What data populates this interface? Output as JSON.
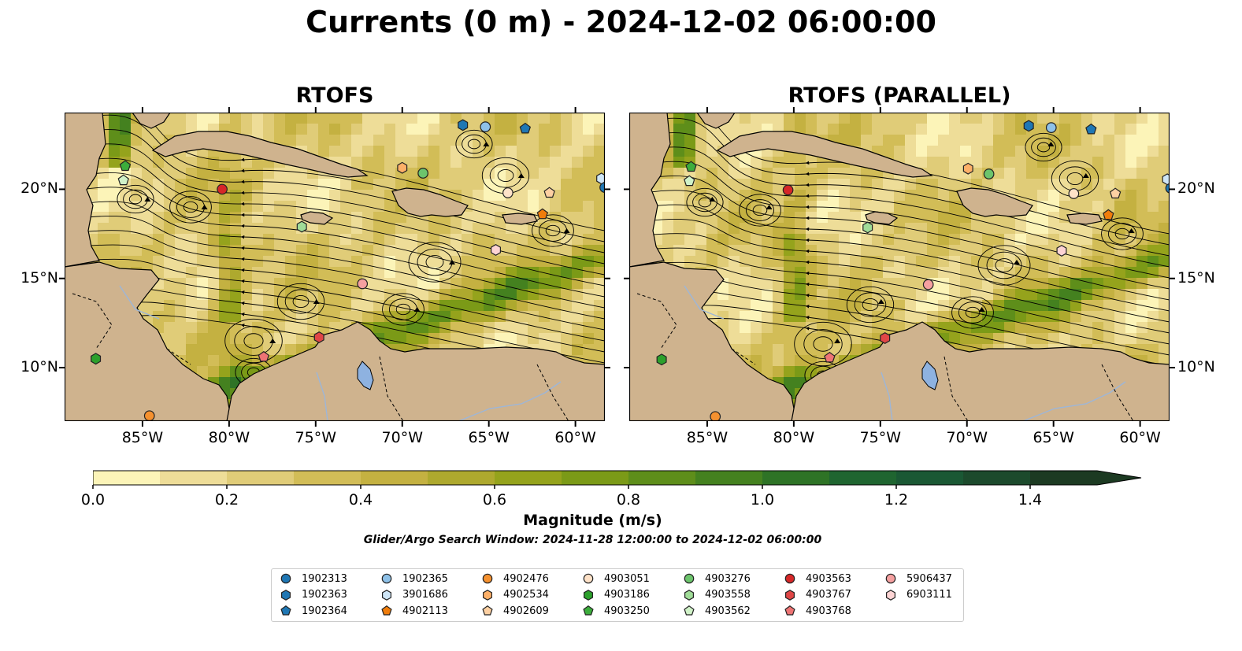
{
  "suptitle": "Currents (0 m) - 2024-12-02 06:00:00",
  "panels": [
    {
      "title": "RTOFS"
    },
    {
      "title": "RTOFS (PARALLEL)"
    }
  ],
  "axes": {
    "lon_labels": [
      "85°W",
      "80°W",
      "75°W",
      "70°W",
      "65°W",
      "60°W"
    ],
    "lon_values": [
      -85,
      -80,
      -75,
      -70,
      -65,
      -60
    ],
    "lat_labels": [
      "20°N",
      "15°N",
      "10°N"
    ],
    "lat_values": [
      20,
      15,
      10
    ],
    "extent": {
      "lon_min": -89.5,
      "lon_max": -58.3,
      "lat_min": 7.0,
      "lat_max": 24.3
    }
  },
  "colorbar": {
    "label": "Magnitude (m/s)",
    "ticks": [
      "0.0",
      "0.2",
      "0.4",
      "0.6",
      "0.8",
      "1.0",
      "1.2",
      "1.4"
    ],
    "tick_values": [
      0.0,
      0.2,
      0.4,
      0.6,
      0.8,
      1.0,
      1.2,
      1.4
    ],
    "min": 0.0,
    "max": 1.5,
    "extend": "max",
    "colors": [
      "#fcf4b8",
      "#eedd98",
      "#e0cc78",
      "#d2bd57",
      "#c4b141",
      "#aea92e",
      "#95a31c",
      "#7b9a17",
      "#5e8e1a",
      "#44811f",
      "#2e7326",
      "#1f6530",
      "#1a5834",
      "#1c4a2c",
      "#1c3a22"
    ]
  },
  "caption": "Glider/Argo Search Window: 2024-11-28 12:00:00 to 2024-12-02 06:00:00",
  "land_color": "#cfb38e",
  "lake_color": "#8eb2e0",
  "platforms": [
    {
      "id": "1902313",
      "marker": "circle",
      "color": "#1f77b4"
    },
    {
      "id": "1902363",
      "marker": "hexagon",
      "color": "#1f77b4"
    },
    {
      "id": "1902364",
      "marker": "pentagon",
      "color": "#1f77b4"
    },
    {
      "id": "1902365",
      "marker": "circle",
      "color": "#8ec1e8"
    },
    {
      "id": "3901686",
      "marker": "hexagon",
      "color": "#cfe6f7"
    },
    {
      "id": "4902113",
      "marker": "pentagon",
      "color": "#f07d0c"
    },
    {
      "id": "4902476",
      "marker": "circle",
      "color": "#f5912f"
    },
    {
      "id": "4902534",
      "marker": "hexagon",
      "color": "#fdb068"
    },
    {
      "id": "4902609",
      "marker": "pentagon",
      "color": "#fdd0a2"
    },
    {
      "id": "4903051",
      "marker": "circle",
      "color": "#fee2c8"
    },
    {
      "id": "4903186",
      "marker": "hexagon",
      "color": "#2ca02c"
    },
    {
      "id": "4903250",
      "marker": "pentagon",
      "color": "#3cad3c"
    },
    {
      "id": "4903276",
      "marker": "circle",
      "color": "#6cc46c"
    },
    {
      "id": "4903558",
      "marker": "hexagon",
      "color": "#a0dc98"
    },
    {
      "id": "4903562",
      "marker": "pentagon",
      "color": "#d0f2c8"
    },
    {
      "id": "4903563",
      "marker": "circle",
      "color": "#d62728"
    },
    {
      "id": "4903767",
      "marker": "hexagon",
      "color": "#e04646"
    },
    {
      "id": "4903768",
      "marker": "pentagon",
      "color": "#ee7474"
    },
    {
      "id": "5906437",
      "marker": "circle",
      "color": "#f5a0a0"
    },
    {
      "id": "6903111",
      "marker": "hexagon",
      "color": "#fdd4d4"
    }
  ],
  "observations": [
    {
      "id": "1902313",
      "lon": -58.3,
      "lat": 20.1
    },
    {
      "id": "1902363",
      "lon": -66.5,
      "lat": 23.6
    },
    {
      "id": "1902364",
      "lon": -62.9,
      "lat": 23.4
    },
    {
      "id": "1902365",
      "lon": -65.2,
      "lat": 23.5
    },
    {
      "id": "3901686",
      "lon": -58.5,
      "lat": 20.6
    },
    {
      "id": "4902113",
      "lon": -61.9,
      "lat": 18.6
    },
    {
      "id": "4902476",
      "lon": -84.6,
      "lat": 7.3
    },
    {
      "id": "4902534",
      "lon": -70.0,
      "lat": 21.2
    },
    {
      "id": "4902609",
      "lon": -61.5,
      "lat": 19.8
    },
    {
      "id": "4903051",
      "lon": -63.9,
      "lat": 19.8
    },
    {
      "id": "4903186",
      "lon": -87.7,
      "lat": 10.5
    },
    {
      "id": "4903250",
      "lon": -86.0,
      "lat": 21.3
    },
    {
      "id": "4903276",
      "lon": -68.8,
      "lat": 20.9
    },
    {
      "id": "4903558",
      "lon": -75.8,
      "lat": 17.9
    },
    {
      "id": "4903562",
      "lon": -86.1,
      "lat": 20.5
    },
    {
      "id": "4903563",
      "lon": -80.4,
      "lat": 20.0
    },
    {
      "id": "4903767",
      "lon": -74.8,
      "lat": 11.7
    },
    {
      "id": "4903768",
      "lon": -78.0,
      "lat": 10.6
    },
    {
      "id": "5906437",
      "lon": -72.3,
      "lat": 14.7
    },
    {
      "id": "6903111",
      "lon": -64.6,
      "lat": 16.6
    }
  ]
}
